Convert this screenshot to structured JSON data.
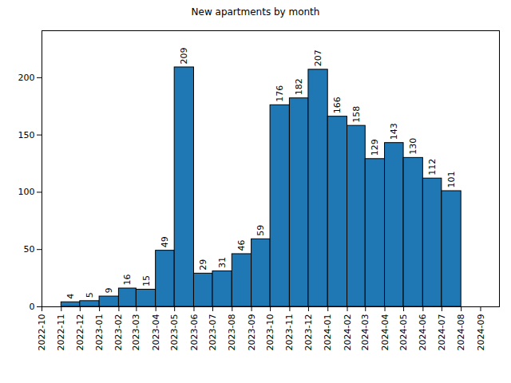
{
  "chart_data": {
    "type": "histogram",
    "title": "New apartments by month",
    "bins": [
      "2022-11",
      "2022-12",
      "2023-01",
      "2023-02",
      "2023-03",
      "2023-04",
      "2023-05",
      "2023-06",
      "2023-07",
      "2023-08",
      "2023-09",
      "2023-10",
      "2023-11",
      "2023-12",
      "2024-01",
      "2024-02",
      "2024-03",
      "2024-04",
      "2024-05",
      "2024-06",
      "2024-07",
      "2024-08"
    ],
    "values": [
      4,
      5,
      9,
      16,
      15,
      49,
      209,
      29,
      31,
      46,
      59,
      176,
      182,
      207,
      166,
      158,
      129,
      143,
      130,
      112,
      101
    ],
    "color": "#1f77b4",
    "xlim": [
      "2022-10",
      "2024-10"
    ],
    "xticks": [
      "2022-10",
      "2022-11",
      "2022-12",
      "2023-01",
      "2023-02",
      "2023-03",
      "2023-04",
      "2023-05",
      "2023-06",
      "2023-07",
      "2023-08",
      "2023-09",
      "2023-10",
      "2023-11",
      "2023-12",
      "2024-01",
      "2024-02",
      "2024-03",
      "2024-04",
      "2024-05",
      "2024-06",
      "2024-07",
      "2024-08",
      "2024-09"
    ],
    "ylim": [
      0,
      241
    ],
    "yticks": [
      0,
      50,
      100,
      150,
      200
    ],
    "grid": false,
    "data_labels": true
  }
}
